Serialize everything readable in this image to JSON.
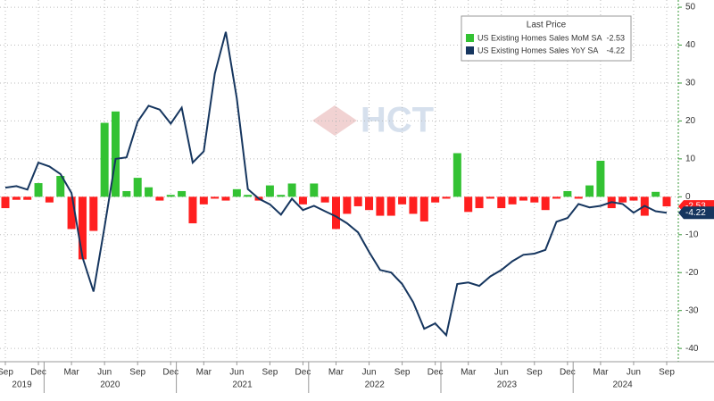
{
  "chart_data": {
    "type": "bar_line",
    "legend_title": "Last Price",
    "watermark": "HCT",
    "categories": [
      "Sep",
      null,
      null,
      "Dec",
      null,
      null,
      "Mar",
      null,
      null,
      "Jun",
      null,
      null,
      "Sep",
      null,
      null,
      "Dec",
      null,
      null,
      "Mar",
      null,
      null,
      "Jun",
      null,
      null,
      "Sep",
      null,
      null,
      "Dec",
      null,
      null,
      "Mar",
      null,
      null,
      "Jun",
      null,
      null,
      "Sep",
      null,
      null,
      "Dec",
      null,
      null,
      "Mar",
      null,
      null,
      "Jun",
      null,
      null,
      "Sep",
      null,
      null,
      "Dec",
      null,
      null,
      "Mar",
      null,
      null,
      "Jun",
      null,
      null,
      "Sep"
    ],
    "years": [
      "2019",
      "2020",
      "2021",
      "2022",
      "2023",
      "2024"
    ],
    "series": [
      {
        "name": "US Existing Homes Sales MoM SA",
        "type": "bar",
        "axis": "y2",
        "color": "#33c233",
        "negative_color": "#ff1f1f",
        "last_value_label": "-2.53",
        "values": [
          -3,
          -0.8,
          -0.8,
          3.6,
          -1.5,
          5.5,
          -8.5,
          -16.5,
          -9.0,
          19.5,
          22.5,
          1.5,
          5.0,
          2.5,
          -1.0,
          0.5,
          1.5,
          -7.0,
          -2.0,
          -0.5,
          -1.0,
          2.0,
          0.5,
          -1.0,
          3.0,
          0.5,
          3.5,
          -2.0,
          3.5,
          -1.5,
          -8.5,
          -4.5,
          -2.5,
          -3.5,
          -5.0,
          -5.0,
          -2.0,
          -4.5,
          -6.5,
          -1.5,
          -0.5,
          11.5,
          -4.0,
          -3.0,
          -0.5,
          -3.0,
          -2.0,
          -1.0,
          -1.5,
          -3.5,
          -0.5,
          1.5,
          -0.5,
          3.0,
          9.5,
          -3.0,
          -1.5,
          -1.0,
          -5.0,
          1.3,
          -2.53
        ]
      },
      {
        "name": "US Existing Homes Sales YoY SA",
        "type": "line",
        "axis": "y2",
        "color": "#16365f",
        "last_value_label": "-4.22",
        "values": [
          2.4,
          2.8,
          1.9,
          9,
          8,
          6,
          1,
          -16,
          -25,
          -8,
          10,
          10.4,
          19.8,
          24,
          23,
          19.3,
          23.5,
          9,
          12,
          32.5,
          43.5,
          26,
          2,
          -0.5,
          -2,
          -4.7,
          -0.5,
          -3.5,
          -2.4,
          -3.8,
          -5.2,
          -7,
          -9.4,
          -14.6,
          -19.3,
          -20,
          -23,
          -27.8,
          -34.8,
          -33.4,
          -36.5,
          -23,
          -22.6,
          -23.5,
          -21,
          -19.3,
          -17,
          -15.3,
          -15,
          -14,
          -6.6,
          -5.6,
          -1.9,
          -2.8,
          -2.4,
          -1.4,
          -1.9,
          -4.2,
          -2.4,
          -3.8,
          -4.22
        ]
      }
    ],
    "y2lim": [
      -43.5,
      51.9
    ],
    "y2ticks": [
      -40,
      -30,
      -20,
      -10,
      0,
      10,
      20,
      30,
      40,
      50
    ],
    "grid": true
  }
}
